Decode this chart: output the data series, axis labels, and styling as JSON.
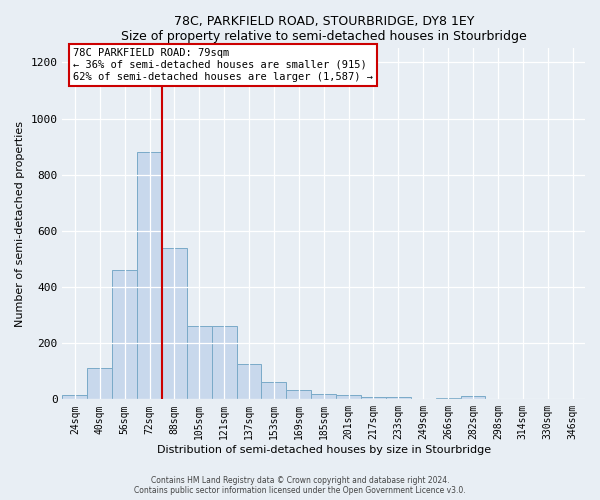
{
  "title1": "78C, PARKFIELD ROAD, STOURBRIDGE, DY8 1EY",
  "title2": "Size of property relative to semi-detached houses in Stourbridge",
  "xlabel": "Distribution of semi-detached houses by size in Stourbridge",
  "ylabel": "Number of semi-detached properties",
  "bar_categories": [
    "24sqm",
    "40sqm",
    "56sqm",
    "72sqm",
    "88sqm",
    "105sqm",
    "121sqm",
    "137sqm",
    "153sqm",
    "169sqm",
    "185sqm",
    "201sqm",
    "217sqm",
    "233sqm",
    "249sqm",
    "266sqm",
    "282sqm",
    "298sqm",
    "314sqm",
    "330sqm",
    "346sqm"
  ],
  "bar_values": [
    15,
    110,
    460,
    880,
    540,
    260,
    260,
    125,
    60,
    35,
    20,
    15,
    10,
    8,
    0,
    5,
    12,
    0,
    0,
    0,
    0
  ],
  "bar_color": "#c8d8ec",
  "bar_edge_color": "#7aaac8",
  "red_line_color": "#cc0000",
  "annotation_text1": "78C PARKFIELD ROAD: 79sqm",
  "annotation_text2": "← 36% of semi-detached houses are smaller (915)",
  "annotation_text3": "62% of semi-detached houses are larger (1,587) →",
  "annotation_box_color": "#ffffff",
  "annotation_box_edge": "#cc0000",
  "ylim": [
    0,
    1250
  ],
  "yticks": [
    0,
    200,
    400,
    600,
    800,
    1000,
    1200
  ],
  "footer1": "Contains HM Land Registry data © Crown copyright and database right 2024.",
  "footer2": "Contains public sector information licensed under the Open Government Licence v3.0.",
  "bg_color": "#e8eef4"
}
